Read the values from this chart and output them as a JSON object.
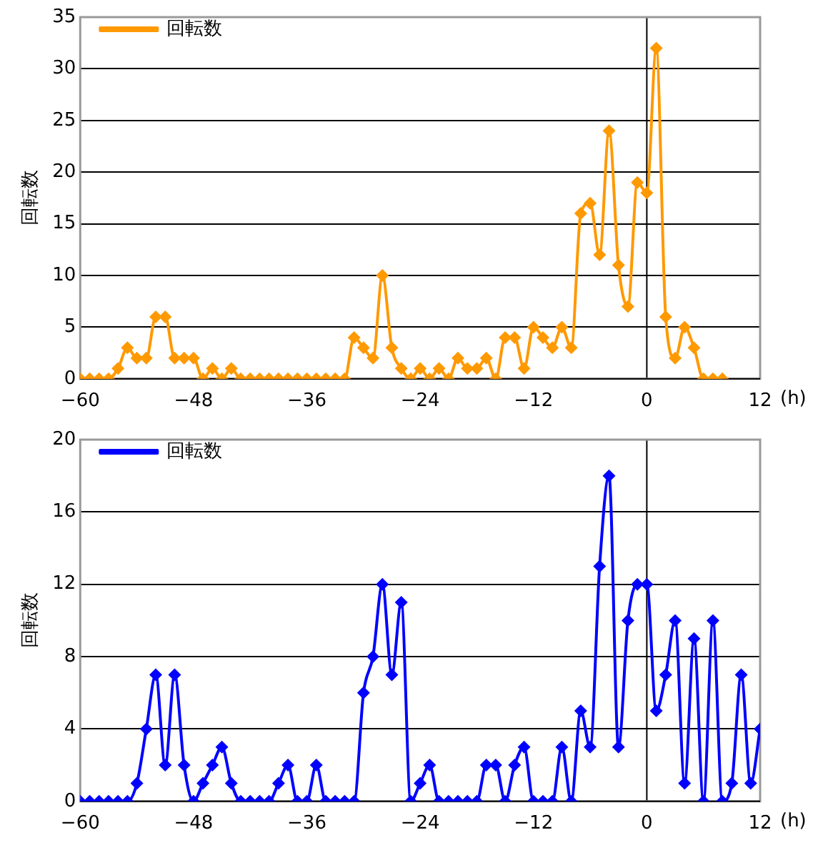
{
  "chart_data": [
    {
      "type": "line",
      "xlabel": "(h)",
      "ylabel": "回転数",
      "x": [
        -60,
        -59,
        -58,
        -57,
        -56,
        -55,
        -54,
        -53,
        -52,
        -51,
        -50,
        -49,
        -48,
        -47,
        -46,
        -45,
        -44,
        -43,
        -42,
        -41,
        -40,
        -39,
        -38,
        -37,
        -36,
        -35,
        -34,
        -33,
        -32,
        -31,
        -30,
        -29,
        -28,
        -27,
        -26,
        -25,
        -24,
        -23,
        -22,
        -21,
        -20,
        -19,
        -18,
        -17,
        -16,
        -15,
        -14,
        -13,
        -12,
        -11,
        -10,
        -9,
        -8,
        -7,
        -6,
        -5,
        -4,
        -3,
        -2,
        -1,
        0,
        1,
        2,
        3,
        4,
        5,
        6,
        7,
        8
      ],
      "series": [
        {
          "name": "回転数",
          "color": "#ff9900",
          "values": [
            0,
            0,
            0,
            0,
            1,
            3,
            2,
            2,
            6,
            6,
            2,
            2,
            2,
            0,
            1,
            0,
            1,
            0,
            0,
            0,
            0,
            0,
            0,
            0,
            0,
            0,
            0,
            0,
            0,
            4,
            3,
            2,
            10,
            3,
            1,
            0,
            1,
            0,
            1,
            0,
            2,
            1,
            1,
            2,
            0,
            4,
            4,
            1,
            5,
            4,
            3,
            5,
            3,
            16,
            17,
            12,
            24,
            11,
            7,
            19,
            18,
            32,
            6,
            2,
            5,
            3,
            0,
            0,
            0
          ]
        }
      ],
      "xlim": [
        -60,
        12
      ],
      "xticks": [
        -60,
        -48,
        -36,
        -24,
        -12,
        0,
        12
      ],
      "ylim": [
        0,
        35
      ],
      "yticks": [
        0,
        5,
        10,
        15,
        20,
        25,
        30,
        35
      ],
      "grid": "y",
      "legend": "top left",
      "marker": "diamond",
      "line_style": "solid",
      "ref_lines": [
        {
          "axis": "x",
          "value": 0,
          "color": "#000000"
        }
      ]
    },
    {
      "type": "line",
      "xlabel": "(h)",
      "ylabel": "回転数",
      "x": [
        -60,
        -59,
        -58,
        -57,
        -56,
        -55,
        -54,
        -53,
        -52,
        -51,
        -50,
        -49,
        -48,
        -47,
        -46,
        -45,
        -44,
        -43,
        -42,
        -41,
        -40,
        -39,
        -38,
        -37,
        -36,
        -35,
        -34,
        -33,
        -32,
        -31,
        -30,
        -29,
        -28,
        -27,
        -26,
        -25,
        -24,
        -23,
        -22,
        -21,
        -20,
        -19,
        -18,
        -17,
        -16,
        -15,
        -14,
        -13,
        -12,
        -11,
        -10,
        -9,
        -8,
        -7,
        -6,
        -5,
        -4,
        -3,
        -2,
        -1,
        0,
        1,
        2,
        3,
        4,
        5,
        6,
        7,
        8,
        9,
        10,
        11,
        12
      ],
      "series": [
        {
          "name": "回転数",
          "color": "#0000ff",
          "values": [
            0,
            0,
            0,
            0,
            0,
            0,
            1,
            4,
            7,
            2,
            7,
            2,
            0,
            1,
            2,
            3,
            1,
            0,
            0,
            0,
            0,
            1,
            2,
            0,
            0,
            2,
            0,
            0,
            0,
            0,
            6,
            8,
            12,
            7,
            11,
            0,
            1,
            2,
            0,
            0,
            0,
            0,
            0,
            2,
            2,
            0,
            2,
            3,
            0,
            0,
            0,
            3,
            0,
            5,
            3,
            13,
            18,
            3,
            10,
            12,
            12,
            5,
            7,
            10,
            1,
            9,
            0,
            10,
            0,
            1,
            7,
            1,
            4
          ]
        }
      ],
      "xlim": [
        -60,
        12
      ],
      "xticks": [
        -60,
        -48,
        -36,
        -24,
        -12,
        0,
        12
      ],
      "ylim": [
        0,
        20
      ],
      "yticks": [
        0,
        4,
        8,
        12,
        16,
        20
      ],
      "grid": "y",
      "legend": "top left",
      "marker": "diamond",
      "line_style": "solid",
      "ref_lines": [
        {
          "axis": "x",
          "value": 0,
          "color": "#000000"
        }
      ]
    }
  ]
}
